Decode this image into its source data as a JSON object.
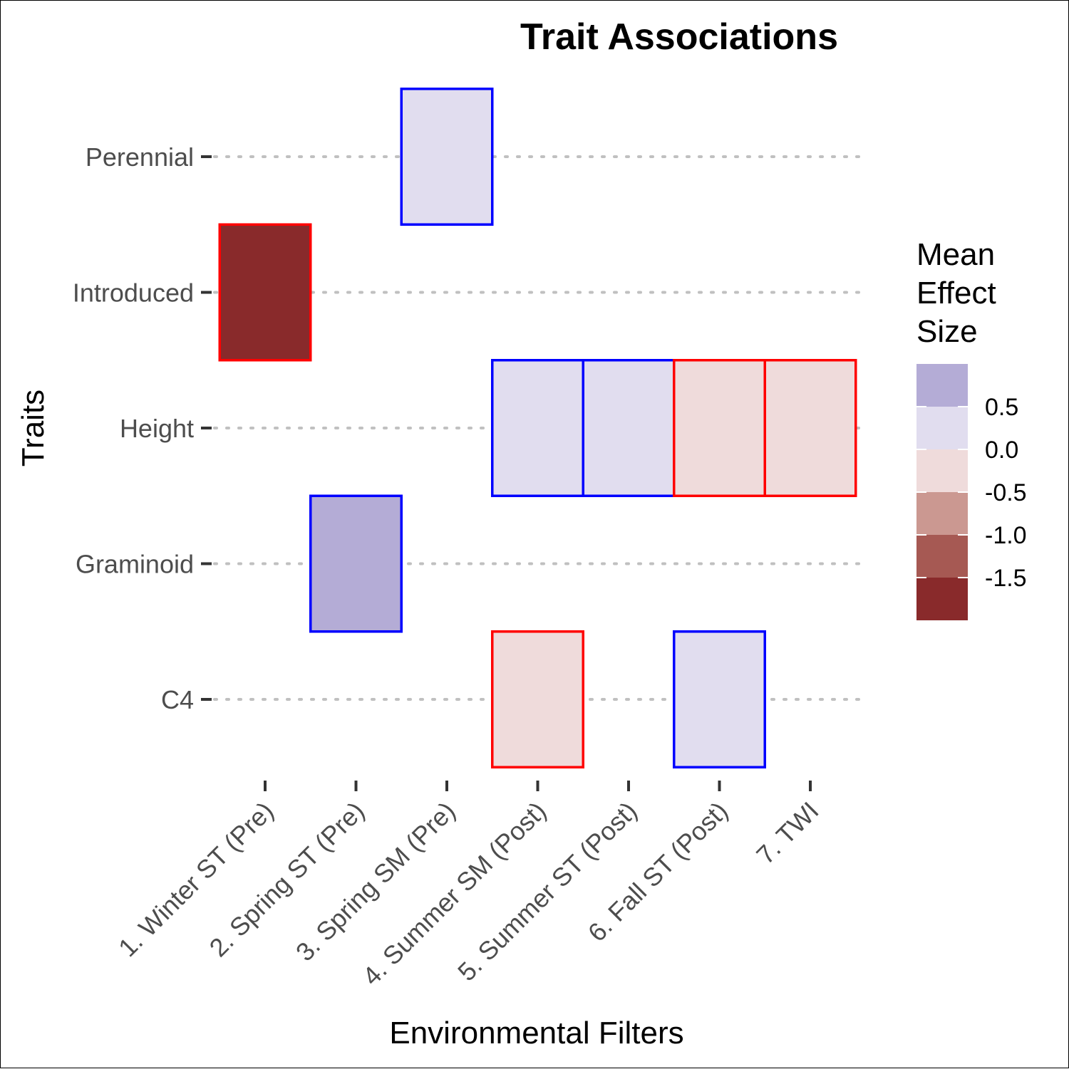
{
  "chart_data": {
    "type": "heatmap",
    "title": "Trait Associations",
    "xlabel": "Environmental Filters",
    "ylabel": "Traits",
    "x_categories": [
      "1. Winter ST (Pre)",
      "2. Spring ST (Pre)",
      "3. Spring SM (Pre)",
      "4. Summer SM (Post)",
      "5. Summer ST (Post)",
      "6. Fall ST (Post)",
      "7. TWI"
    ],
    "y_categories": [
      "Perennial",
      "Introduced",
      "Height",
      "Graminoid",
      "C4"
    ],
    "cells": [
      {
        "x": "3. Spring SM (Pre)",
        "y": "Perennial",
        "value": 0.25,
        "sign": "positive"
      },
      {
        "x": "1. Winter ST (Pre)",
        "y": "Introduced",
        "value": -1.8,
        "sign": "negative"
      },
      {
        "x": "4. Summer SM (Post)",
        "y": "Height",
        "value": 0.25,
        "sign": "positive"
      },
      {
        "x": "5. Summer ST (Post)",
        "y": "Height",
        "value": 0.25,
        "sign": "positive"
      },
      {
        "x": "6. Fall ST (Post)",
        "y": "Height",
        "value": -0.25,
        "sign": "negative"
      },
      {
        "x": "7. TWI",
        "y": "Height",
        "value": -0.25,
        "sign": "negative"
      },
      {
        "x": "2. Spring ST (Pre)",
        "y": "Graminoid",
        "value": 0.75,
        "sign": "positive"
      },
      {
        "x": "4. Summer SM (Post)",
        "y": "C4",
        "value": -0.25,
        "sign": "negative"
      },
      {
        "x": "6. Fall ST (Post)",
        "y": "C4",
        "value": 0.25,
        "sign": "positive"
      }
    ],
    "legend": {
      "title": [
        "Mean",
        "Effect",
        "Size"
      ],
      "placement": "right",
      "bins": [
        {
          "min": 0.5,
          "max": 1.0,
          "color": "#b4acd6"
        },
        {
          "min": 0.0,
          "max": 0.5,
          "color": "#e1ddef"
        },
        {
          "min": -0.5,
          "max": 0.0,
          "color": "#efdbdb"
        },
        {
          "min": -1.0,
          "max": -0.5,
          "color": "#cb9891"
        },
        {
          "min": -1.5,
          "max": -1.0,
          "color": "#a65953"
        },
        {
          "min": -2.0,
          "max": -1.5,
          "color": "#892a2b"
        }
      ],
      "labels": [
        "0.5",
        "0.0",
        "-0.5",
        "-1.0",
        "-1.5"
      ]
    },
    "outline_colors": {
      "positive": "#0000ff",
      "negative": "#ff0000"
    },
    "grid": "dotted horizontal"
  }
}
